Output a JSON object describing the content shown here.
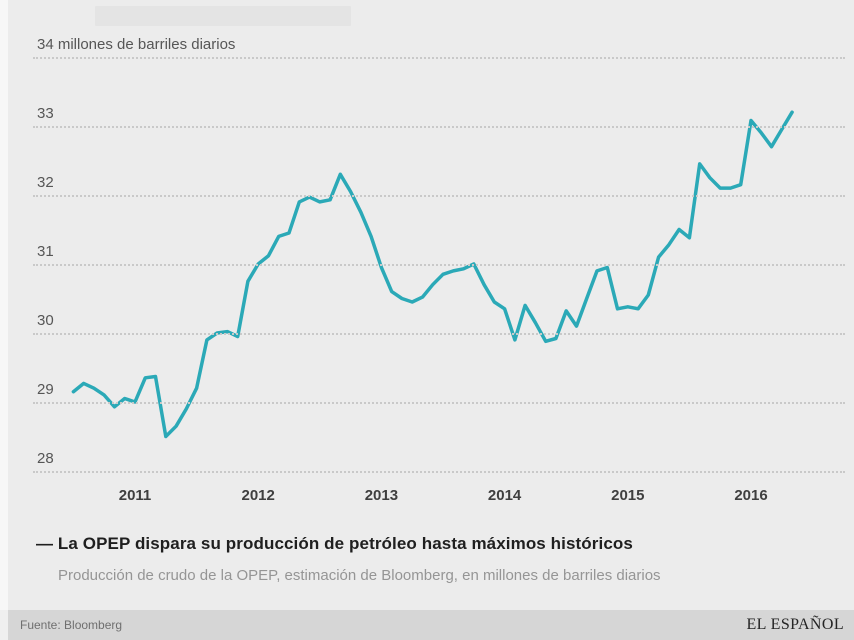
{
  "page": {
    "background": "#ececec",
    "accent": "#2BA9B7"
  },
  "chart_data": {
    "type": "line",
    "title": "La OPEP dispara su producción de petróleo hasta máximos históricos",
    "subtitle": "Producción de crudo de la OPEP, estimación de Bloomberg, en millones de barriles diarios",
    "unit_top_label": "34 millones de barriles diarios",
    "grid": "dotted-horizontal",
    "legend": "none",
    "y_axis": {
      "grid_values": [
        34,
        33,
        32,
        31,
        30,
        29,
        28
      ],
      "tick_labels": [
        "34 millones de barriles diarios",
        "33",
        "32",
        "31",
        "30",
        "29",
        "28"
      ],
      "ylim": [
        28,
        34
      ]
    },
    "x_axis": {
      "tick_labels": [
        "2011",
        "2012",
        "2013",
        "2014",
        "2015",
        "2016"
      ]
    },
    "series": [
      {
        "name": "Producción de crudo de la OPEP (estimación de Bloomberg)",
        "color": "#2BA9B7",
        "frequency": "monthly",
        "start_month": "2010-07",
        "end_month": "2016-05",
        "values": [
          29.15,
          29.27,
          29.2,
          29.1,
          28.93,
          29.05,
          29.0,
          29.35,
          29.37,
          28.5,
          28.65,
          28.9,
          29.2,
          29.9,
          30.0,
          30.02,
          29.95,
          30.75,
          31.0,
          31.12,
          31.4,
          31.45,
          31.9,
          31.97,
          31.9,
          31.93,
          32.3,
          32.05,
          31.75,
          31.4,
          30.95,
          30.6,
          30.5,
          30.45,
          30.52,
          30.7,
          30.85,
          30.9,
          30.93,
          31.0,
          30.7,
          30.45,
          30.35,
          29.9,
          30.4,
          30.15,
          29.88,
          29.92,
          30.32,
          30.1,
          30.5,
          30.9,
          30.95,
          30.35,
          30.38,
          30.35,
          30.55,
          31.1,
          31.28,
          31.5,
          31.38,
          32.45,
          32.25,
          32.1,
          32.1,
          32.15,
          33.08,
          32.9,
          32.7,
          32.95,
          33.2
        ]
      }
    ]
  },
  "caption": {
    "display_title": "— La OPEP dispara su producción de petróleo hasta máximos históricos",
    "subtitle": "Producción de crudo de la OPEP, estimación de Bloomberg, en millones de barriles diarios"
  },
  "footer": {
    "source": "Fuente: Bloomberg",
    "brand": "EL ESPAÑOL"
  }
}
